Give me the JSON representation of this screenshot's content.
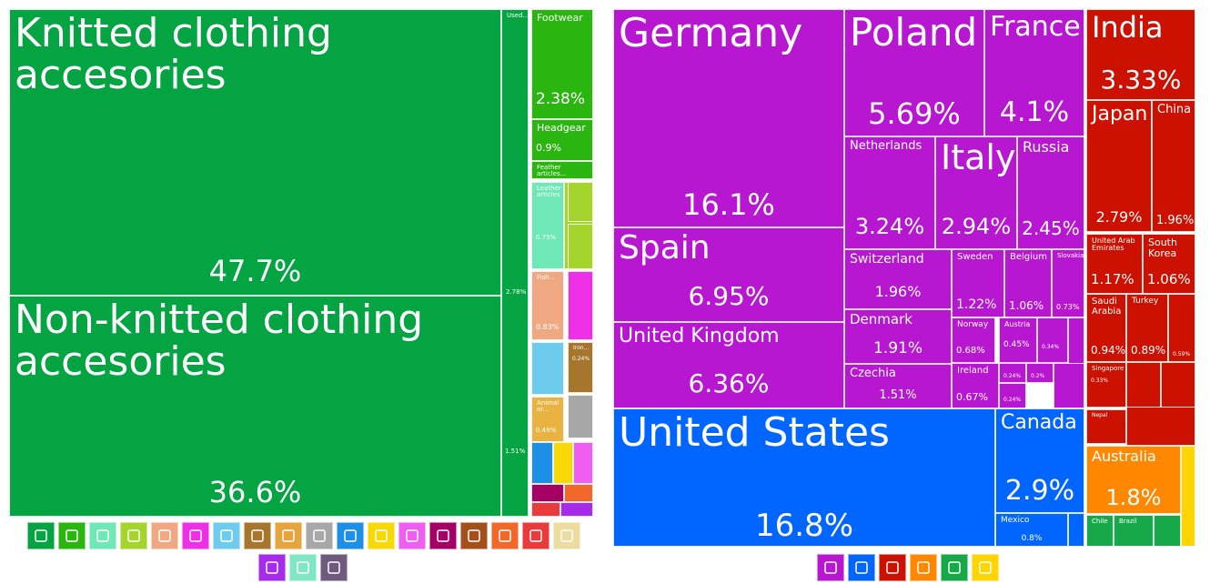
{
  "chart_data": [
    {
      "type": "treemap",
      "title": "",
      "items": [
        {
          "name": "Knitted clothing accesories",
          "value": 47.7,
          "value_label": "47.7%",
          "color": "#04a443"
        },
        {
          "name": "Non-knitted clothing accesories",
          "value": 36.6,
          "value_label": "36.6%",
          "color": "#04a443"
        },
        {
          "name": "Used...",
          "value": 2.78,
          "value_label": "2.78%",
          "color": "#04a443"
        },
        {
          "name": "",
          "value": 1.51,
          "value_label": "1.51%",
          "color": "#04a443"
        },
        {
          "name": "Footwear",
          "value": 2.38,
          "value_label": "2.38%",
          "color": "#2bb510"
        },
        {
          "name": "Headgear",
          "value": 0.9,
          "value_label": "0.9%",
          "color": "#2bb510"
        },
        {
          "name": "Feather articles...",
          "value": null,
          "value_label": "",
          "color": "#2bb510"
        },
        {
          "name": "Leather articles",
          "value": 0.75,
          "value_label": "0.75%",
          "color": "#6de8b6"
        },
        {
          "name": "Fish...",
          "value": 0.83,
          "value_label": "0.83%",
          "color": "#f0a882"
        },
        {
          "name": "Iron...",
          "value": 0.24,
          "value_label": "0.24%",
          "color": "#a6762c"
        },
        {
          "name": "Animal or...",
          "value": 0.49,
          "value_label": "0.49%",
          "color": "#e8b340"
        }
      ],
      "legend_icons": [
        "shirt-icon",
        "shoe-icon",
        "hide-icon",
        "wheat-icon",
        "animal-icon",
        "flask-icon",
        "plastic-icon",
        "stone-icon",
        "metal-icon",
        "box-icon",
        "gear-icon",
        "fruit-icon",
        "recycle-icon",
        "gauge-icon",
        "mineral-icon",
        "food-icon",
        "vehicle-icon",
        "paper-icon",
        "gem-icon",
        "textile-icon",
        "art-icon"
      ],
      "legend_colors": [
        "#04a443",
        "#2bb510",
        "#6de8b6",
        "#a5d52d",
        "#f0a882",
        "#ed2fe6",
        "#6dcbee",
        "#a6762c",
        "#e5a43d",
        "#a7a7a7",
        "#1e8fe6",
        "#f9d808",
        "#ed5ef1",
        "#a50064",
        "#a4501c",
        "#f2682a",
        "#e93b3b",
        "#ecdca0",
        "#a62bea",
        "#80e7c4",
        "#6f5a80"
      ]
    },
    {
      "type": "treemap",
      "title": "",
      "items": [
        {
          "name": "Germany",
          "value": 16.1,
          "value_label": "16.1%",
          "color": "#b717d1"
        },
        {
          "name": "Spain",
          "value": 6.95,
          "value_label": "6.95%",
          "color": "#b717d1"
        },
        {
          "name": "United Kingdom",
          "value": 6.36,
          "value_label": "6.36%",
          "color": "#b717d1"
        },
        {
          "name": "Poland",
          "value": 5.69,
          "value_label": "5.69%",
          "color": "#b717d1"
        },
        {
          "name": "France",
          "value": 4.1,
          "value_label": "4.1%",
          "color": "#b717d1"
        },
        {
          "name": "Netherlands",
          "value": 3.24,
          "value_label": "3.24%",
          "color": "#b717d1"
        },
        {
          "name": "Italy",
          "value": 2.94,
          "value_label": "2.94%",
          "color": "#b717d1"
        },
        {
          "name": "Russia",
          "value": 2.45,
          "value_label": "2.45%",
          "color": "#b717d1"
        },
        {
          "name": "Switzerland",
          "value": 1.96,
          "value_label": "1.96%",
          "color": "#b717d1"
        },
        {
          "name": "Denmark",
          "value": 1.91,
          "value_label": "1.91%",
          "color": "#b717d1"
        },
        {
          "name": "Czechia",
          "value": 1.51,
          "value_label": "1.51%",
          "color": "#b717d1"
        },
        {
          "name": "Sweden",
          "value": 1.22,
          "value_label": "1.22%",
          "color": "#b717d1"
        },
        {
          "name": "Belgium",
          "value": 1.06,
          "value_label": "1.06%",
          "color": "#b717d1"
        },
        {
          "name": "Slovakia",
          "value": 0.73,
          "value_label": "0.73%",
          "color": "#b717d1"
        },
        {
          "name": "Norway",
          "value": 0.68,
          "value_label": "0.68%",
          "color": "#b717d1"
        },
        {
          "name": "Ireland",
          "value": 0.67,
          "value_label": "0.67%",
          "color": "#b717d1"
        },
        {
          "name": "Austria",
          "value": 0.45,
          "value_label": "0.45%",
          "color": "#b717d1"
        },
        {
          "name": "",
          "value": 0.34,
          "value_label": "0.34%",
          "color": "#b717d1"
        },
        {
          "name": "",
          "value": 0.24,
          "value_label": "0.24%",
          "color": "#b717d1"
        },
        {
          "name": "",
          "value": 0.2,
          "value_label": "0.2%",
          "color": "#b717d1"
        },
        {
          "name": "",
          "value": 0.24,
          "value_label": "0.24%",
          "color": "#b717d1"
        },
        {
          "name": "United States",
          "value": 16.8,
          "value_label": "16.8%",
          "color": "#0066ff"
        },
        {
          "name": "Canada",
          "value": 2.9,
          "value_label": "2.9%",
          "color": "#0066ff"
        },
        {
          "name": "Mexico",
          "value": 0.8,
          "value_label": "0.8%",
          "color": "#0066ff"
        },
        {
          "name": "India",
          "value": 3.33,
          "value_label": "3.33%",
          "color": "#cc1100"
        },
        {
          "name": "Japan",
          "value": 2.79,
          "value_label": "2.79%",
          "color": "#cc1100"
        },
        {
          "name": "China",
          "value": 1.96,
          "value_label": "1.96%",
          "color": "#cc1100"
        },
        {
          "name": "United Arab Emirates",
          "value": 1.17,
          "value_label": "1.17%",
          "color": "#cc1100"
        },
        {
          "name": "South Korea",
          "value": 1.06,
          "value_label": "1.06%",
          "color": "#cc1100"
        },
        {
          "name": "Saudi Arabia",
          "value": 0.94,
          "value_label": "0.94%",
          "color": "#cc1100"
        },
        {
          "name": "Turkey",
          "value": 0.89,
          "value_label": "0.89%",
          "color": "#cc1100"
        },
        {
          "name": "",
          "value": 0.59,
          "value_label": "0.59%",
          "color": "#cc1100"
        },
        {
          "name": "Singapore",
          "value": 0.33,
          "value_label": "0.33%",
          "color": "#cc1100"
        },
        {
          "name": "Nepal",
          "value": null,
          "value_label": "",
          "color": "#cc1100"
        },
        {
          "name": "Australia",
          "value": 1.8,
          "value_label": "1.8%",
          "color": "#ff8800"
        },
        {
          "name": "Chile",
          "value": null,
          "value_label": "",
          "color": "#17a84a"
        },
        {
          "name": "Brazil",
          "value": null,
          "value_label": "",
          "color": "#17a84a"
        }
      ],
      "legend_icons": [
        "europe-icon",
        "north-america-icon",
        "asia-icon",
        "oceania-icon",
        "south-america-icon",
        "africa-icon"
      ],
      "legend_colors": [
        "#b717d1",
        "#0066ff",
        "#cc1100",
        "#ff8800",
        "#17a84a",
        "#ffd500"
      ]
    }
  ]
}
